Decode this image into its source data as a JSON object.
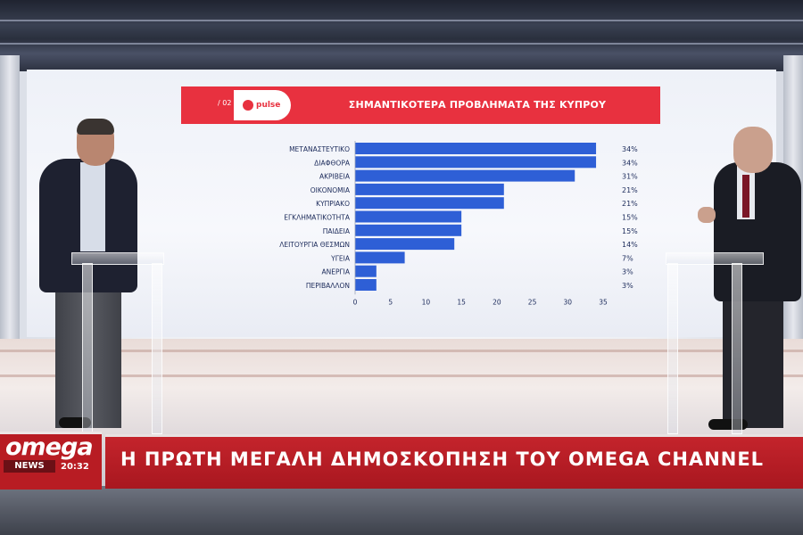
{
  "chart_data": {
    "type": "bar",
    "orientation": "horizontal",
    "slide_number": "/ 02",
    "logo": "pulse",
    "title": "ΣΗΜΑΝΤΙΚΟΤΕΡΑ ΠΡΟΒΛΗΜΑΤΑ ΤΗΣ ΚΥΠΡΟΥ",
    "categories": [
      "ΜΕΤΑΝΑΣΤΕΥΤΙΚΟ",
      "ΔΙΑΦΘΟΡΑ",
      "ΑΚΡΙΒΕΙΑ",
      "ΟΙΚΟΝΟΜΙΑ",
      "ΚΥΠΡΙΑΚΟ",
      "ΕΓΚΛΗΜΑΤΙΚΟΤΗΤΑ",
      "ΠΑΙΔΕΙΑ",
      "ΛΕΙΤΟΥΡΓΙΑ ΘΕΣΜΩΝ",
      "ΥΓΕΙΑ",
      "ΑΝΕΡΓΙΑ",
      "ΠΕΡΙΒΑΛΛΟΝ"
    ],
    "values": [
      34,
      34,
      31,
      21,
      21,
      15,
      15,
      14,
      7,
      3,
      3
    ],
    "value_labels": [
      "34%",
      "34%",
      "31%",
      "21%",
      "21%",
      "15%",
      "15%",
      "14%",
      "7%",
      "3%",
      "3%"
    ],
    "x_ticks": [
      "0",
      "5",
      "10",
      "15",
      "20",
      "25",
      "30",
      "35"
    ],
    "xlim": [
      0,
      35
    ],
    "bar_color": "#2e5fd6"
  },
  "lower_third": {
    "channel": "omega",
    "news_label": "NEWS",
    "time": "20:32",
    "headline": "Η ΠΡΩΤΗ ΜΕΓΑΛΗ ΔΗΜΟΣΚΟΠΗΣΗ ΤΟΥ OMEGA CHANNEL"
  },
  "colors": {
    "header_red": "#e8313f",
    "ticker_red": "#b81c23"
  }
}
